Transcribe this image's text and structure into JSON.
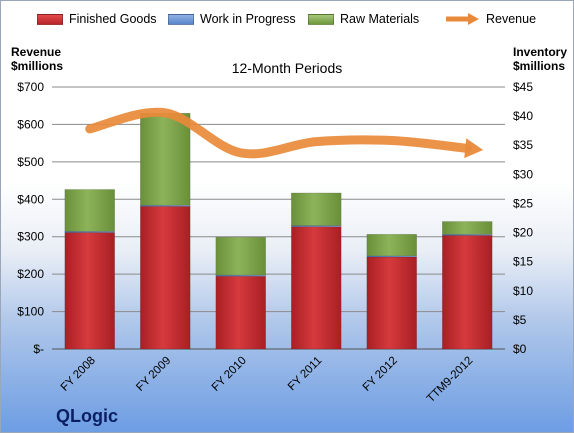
{
  "brand": "QLogic",
  "legend": {
    "finished_goods": "Finished Goods",
    "work_in_progress": "Work in Progress",
    "raw_materials": "Raw Materials",
    "revenue": "Revenue"
  },
  "colors": {
    "finished_goods": "#c42d30",
    "work_in_progress": "#5b86cc",
    "raw_materials": "#7fa24a",
    "revenue": "#e88a3a"
  },
  "chart_data": {
    "type": "bar",
    "subtitle": "12-Month Periods",
    "ylabel_left": "Revenue\n$millions",
    "ylabel_right": "Inventory\n$millions",
    "categories": [
      "FY 2008",
      "FY 2009",
      "FY 2010",
      "FY 2011",
      "FY 2012",
      "TTM9-2012"
    ],
    "left_axis": {
      "min": 0,
      "max": 700,
      "step": 100,
      "tick_labels": [
        "$-",
        "$100",
        "$200",
        "$300",
        "$400",
        "$500",
        "$600",
        "$700"
      ]
    },
    "right_axis": {
      "min": 0,
      "max": 45,
      "step": 5,
      "tick_labels": [
        "$0",
        "$5",
        "$10",
        "$15",
        "$20",
        "$25",
        "$30",
        "$35",
        "$40",
        "$45"
      ]
    },
    "series": [
      {
        "name": "Finished Goods",
        "axis": "right",
        "type": "stacked-bar",
        "values": [
          20.0,
          24.5,
          12.5,
          21.0,
          15.8,
          19.5
        ]
      },
      {
        "name": "Work in Progress",
        "axis": "right",
        "type": "stacked-bar",
        "values": [
          0.2,
          0.2,
          0.2,
          0.2,
          0.2,
          0.2
        ]
      },
      {
        "name": "Raw Materials",
        "axis": "right",
        "type": "stacked-bar",
        "values": [
          7.2,
          15.8,
          6.5,
          5.6,
          3.7,
          2.2
        ]
      },
      {
        "name": "Revenue",
        "axis": "left",
        "type": "line",
        "values": [
          588,
          631,
          524,
          554,
          557,
          536
        ]
      }
    ],
    "grid": true,
    "legend_position": "top"
  }
}
